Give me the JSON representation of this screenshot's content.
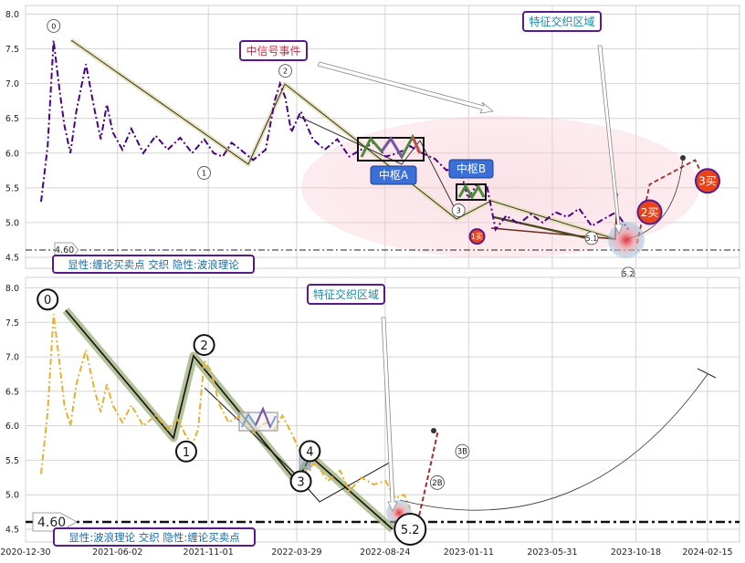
{
  "chart_data": [
    {
      "type": "line",
      "panel": "top",
      "ylim": [
        4.4,
        8.15
      ],
      "yticks": [
        "8.0",
        "7.5",
        "7.0",
        "6.5",
        "6.0",
        "5.5",
        "5.0",
        "4.5"
      ],
      "ytick_values": [
        8.0,
        7.5,
        7.0,
        6.5,
        6.0,
        5.5,
        5.0,
        4.5
      ],
      "grid": true,
      "series": [
        {
          "style": "dash-dot",
          "color": "#4b0082",
          "x": [
            "2021-01-25",
            "2021-02-05",
            "2021-02-15",
            "2021-02-25",
            "2021-03-05",
            "2021-03-15",
            "2021-03-25",
            "2021-04-10",
            "2021-04-25",
            "2021-05-05",
            "2021-05-15",
            "2021-05-25",
            "2021-06-10",
            "2021-06-25",
            "2021-07-15",
            "2021-08-05",
            "2021-08-25",
            "2021-09-15",
            "2021-10-05",
            "2021-10-25",
            "2021-11-10",
            "2021-11-25",
            "2021-12-10",
            "2021-12-25",
            "2022-01-15",
            "2022-02-05",
            "2022-02-20",
            "2022-03-01",
            "2022-03-10",
            "2022-03-20",
            "2022-04-05",
            "2022-04-25",
            "2022-05-15",
            "2022-06-05",
            "2022-06-25",
            "2022-07-15",
            "2022-08-05",
            "2022-08-25",
            "2022-09-15",
            "2022-10-05",
            "2022-10-25",
            "2022-11-15",
            "2022-12-05",
            "2022-12-25",
            "2023-01-10",
            "2023-01-25",
            "2023-02-10",
            "2023-02-25",
            "2023-03-15",
            "2023-04-05",
            "2023-04-25",
            "2023-05-15",
            "2023-06-05",
            "2023-06-25",
            "2023-07-15",
            "2023-08-05",
            "2023-08-25",
            "2023-09-15",
            "2023-10-05"
          ],
          "y": [
            5.3,
            6.1,
            7.62,
            6.9,
            6.4,
            6.0,
            6.6,
            7.28,
            6.6,
            6.2,
            6.7,
            6.3,
            6.05,
            6.35,
            6.0,
            6.25,
            6.05,
            6.22,
            6.0,
            6.2,
            6.0,
            5.95,
            6.15,
            6.05,
            5.9,
            6.05,
            6.75,
            7.0,
            6.8,
            6.3,
            6.6,
            6.2,
            6.05,
            6.2,
            5.95,
            6.05,
            6.15,
            5.95,
            6.0,
            6.1,
            6.0,
            5.92,
            5.75,
            5.85,
            5.35,
            5.55,
            5.55,
            4.9,
            5.1,
            4.98,
            5.12,
            5.0,
            5.15,
            5.08,
            5.2,
            4.95,
            5.05,
            5.15,
            4.9
          ]
        },
        {
          "style": "dashed",
          "color": "#a52a2a",
          "x": [
            "2023-10-20",
            "2023-11-10",
            "2024-01-25",
            "2024-02-10"
          ],
          "y": [
            4.7,
            5.55,
            5.9,
            5.62
          ]
        }
      ],
      "wave_points": [
        {
          "label": "0",
          "x": "2021-02-15",
          "y": 7.62
        },
        {
          "label": "1",
          "x": "2021-10-25",
          "y": 5.82
        },
        {
          "label": "2",
          "x": "2022-03-10",
          "y": 7.0
        },
        {
          "label": "3",
          "x": "2022-12-25",
          "y": 5.15
        },
        {
          "label": "5.1",
          "x": "2023-10-05",
          "y": 4.75
        },
        {
          "label": "5.2",
          "x": "2023-10-25",
          "y": 4.58
        }
      ],
      "pivots": [
        {
          "label": "中枢A",
          "x0": "2022-07-15",
          "x1": "2022-10-05",
          "y0": 5.9,
          "y1": 6.22
        },
        {
          "label": "中枢B",
          "x0": "2022-12-25",
          "x1": "2023-01-25",
          "y0": 5.32,
          "y1": 5.52
        }
      ],
      "buy_points": [
        {
          "label": "1买",
          "x": "2023-01-25",
          "y": 4.8
        },
        {
          "label": "2买",
          "x": "2023-11-10",
          "y": 5.15
        },
        {
          "label": "3买",
          "x": "2024-02-15",
          "y": 5.6
        }
      ],
      "reference_line": {
        "value": 4.6,
        "label": "4.60"
      },
      "annotations": {
        "signal_event": "中信号事件",
        "feature_zone": "特征交织区域",
        "pivot_a": "中枢A",
        "pivot_b": "中枢B",
        "caption": "显性:缠论买卖点 交织 隐性:波浪理论"
      },
      "colors": {
        "series": "#4b0082",
        "buy_point": "#e8441a",
        "pivot": "#3a6fd8",
        "caption_border": "#5b1a8c"
      }
    },
    {
      "type": "line",
      "panel": "bottom",
      "ylim": [
        4.4,
        8.15
      ],
      "yticks": [
        "8.0",
        "7.5",
        "7.0",
        "6.5",
        "6.0",
        "5.5",
        "5.0",
        "4.5"
      ],
      "ytick_values": [
        8.0,
        7.5,
        7.0,
        6.5,
        6.0,
        5.5,
        5.0,
        4.5
      ],
      "xticks": [
        "2020-12-30",
        "2021-06-02",
        "2021-11-01",
        "2022-03-29",
        "2022-08-24",
        "2023-01-11",
        "2023-05-31",
        "2023-10-18",
        "2024-02-15"
      ],
      "grid": true,
      "series": [
        {
          "style": "dash-dot",
          "color": "#e8b030",
          "x": [
            "2021-01-25",
            "2021-02-05",
            "2021-02-15",
            "2021-02-25",
            "2021-03-05",
            "2021-03-15",
            "2021-03-25",
            "2021-04-10",
            "2021-04-25",
            "2021-05-05",
            "2021-05-15",
            "2021-05-25",
            "2021-06-10",
            "2021-06-25",
            "2021-07-15",
            "2021-08-05",
            "2021-08-25",
            "2021-09-10",
            "2021-09-25",
            "2021-10-05",
            "2021-10-15",
            "2021-10-25",
            "2021-11-05",
            "2021-11-20",
            "2021-12-05",
            "2021-12-25",
            "2022-01-15",
            "2022-02-05",
            "2022-02-20",
            "2022-03-05",
            "2022-03-20",
            "2022-04-05",
            "2022-04-15",
            "2022-04-25",
            "2022-05-05",
            "2022-05-20",
            "2022-06-10",
            "2022-06-25",
            "2022-07-15",
            "2022-08-05",
            "2022-08-25",
            "2022-09-10",
            "2022-09-25",
            "2022-10-05"
          ],
          "y": [
            5.3,
            6.2,
            7.62,
            6.9,
            6.3,
            6.0,
            6.6,
            7.1,
            6.5,
            6.2,
            6.6,
            6.3,
            6.05,
            6.3,
            6.0,
            6.15,
            5.95,
            6.1,
            5.85,
            5.72,
            5.95,
            6.95,
            6.8,
            6.3,
            6.05,
            6.15,
            5.9,
            6.05,
            5.95,
            6.15,
            5.9,
            5.6,
            5.25,
            5.45,
            5.4,
            5.2,
            5.35,
            5.05,
            5.25,
            5.15,
            5.2,
            4.95,
            5.0,
            4.8
          ]
        },
        {
          "style": "dashed",
          "color": "#a52a2a",
          "x": [
            "2022-10-20",
            "2022-11-01",
            "2022-11-20"
          ],
          "y": [
            4.7,
            5.15,
            5.9
          ]
        }
      ],
      "wave_points": [
        {
          "label": "0",
          "x": "2021-02-05",
          "y": 7.62
        },
        {
          "label": "1",
          "x": "2021-09-25",
          "y": 5.72
        },
        {
          "label": "2",
          "x": "2021-10-25",
          "y": 7.0
        },
        {
          "label": "3",
          "x": "2022-04-05",
          "y": 5.3
        },
        {
          "label": "4",
          "x": "2022-04-20",
          "y": 5.5
        },
        {
          "label": "5.2",
          "x": "2022-10-05",
          "y": 4.58
        }
      ],
      "buy_points": [
        {
          "label": "2B",
          "x": "2022-11-01",
          "y": 5.15
        },
        {
          "label": "3B",
          "x": "2022-12-10",
          "y": 5.55
        }
      ],
      "reference_line": {
        "value": 4.6,
        "label": "4.60"
      },
      "annotations": {
        "feature_zone": "特征交织区域",
        "caption": "显性:波浪理论 交织 隐性:缠论买卖点"
      },
      "colors": {
        "series": "#e8b030",
        "wave_band": "#6b8e23",
        "caption_border": "#5b1a8c"
      }
    }
  ]
}
